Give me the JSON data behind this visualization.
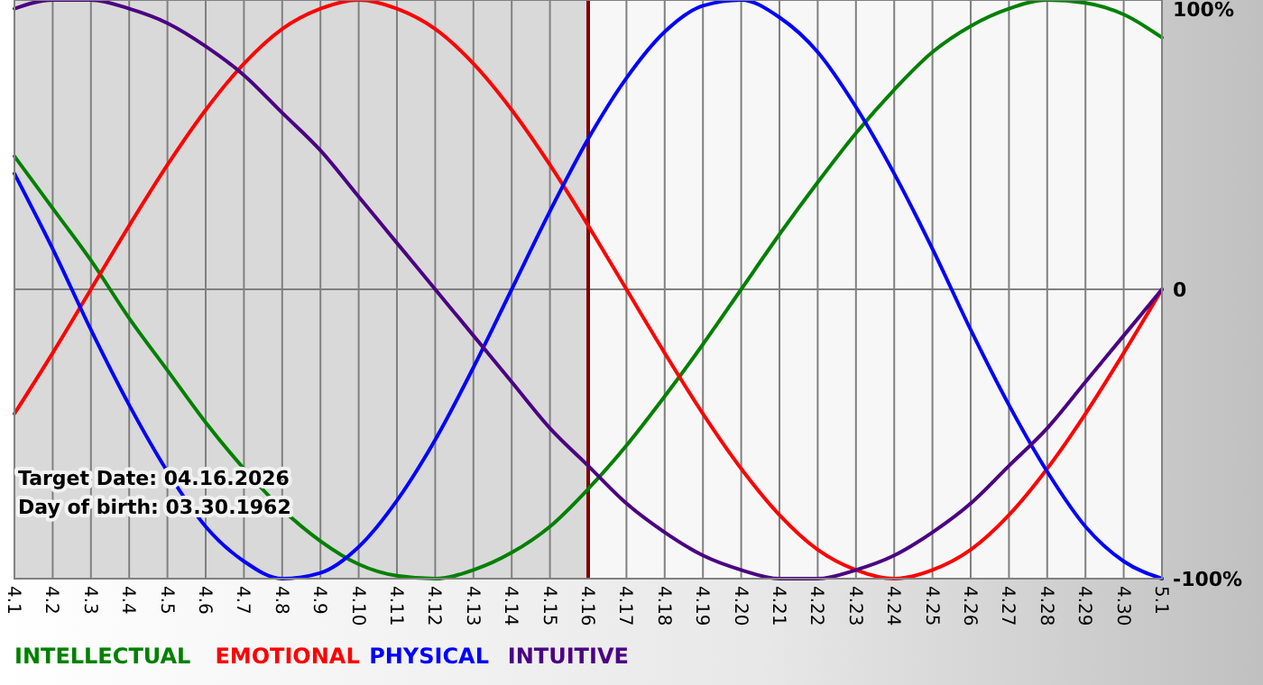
{
  "chart_data": {
    "type": "line",
    "categories": [
      "4.1",
      "4.2",
      "4.3",
      "4.4",
      "4.5",
      "4.6",
      "4.7",
      "4.8",
      "4.9",
      "4.10",
      "4.11",
      "4.12",
      "4.13",
      "4.14",
      "4.15",
      "4.16",
      "4.17",
      "4.18",
      "4.19",
      "4.20",
      "4.21",
      "4.22",
      "4.23",
      "4.24",
      "4.25",
      "4.26",
      "4.27",
      "4.28",
      "4.29",
      "4.30",
      "5.1"
    ],
    "series": [
      {
        "name": "INTELLECTUAL",
        "color": "#008000",
        "values": [
          46,
          28,
          10,
          -10,
          -28,
          -46,
          -62,
          -76,
          -87,
          -95,
          -99,
          -100,
          -97,
          -91,
          -82,
          -69,
          -54,
          -37,
          -19,
          0,
          19,
          37,
          54,
          69,
          82,
          91,
          97,
          100,
          99,
          95,
          87
        ]
      },
      {
        "name": "EMOTIONAL",
        "color": "#ff0000",
        "values": [
          -43,
          -22,
          0,
          22,
          43,
          62,
          78,
          90,
          97,
          100,
          97,
          90,
          78,
          62,
          43,
          22,
          0,
          -22,
          -43,
          -62,
          -78,
          -90,
          -97,
          -100,
          -97,
          -90,
          -78,
          -62,
          -43,
          -22,
          0
        ]
      },
      {
        "name": "PHYSICAL",
        "color": "#0000ff",
        "values": [
          40,
          14,
          -14,
          -40,
          -63,
          -82,
          -94,
          -100,
          -98,
          -89,
          -73,
          -52,
          -27,
          0,
          27,
          52,
          73,
          89,
          98,
          100,
          94,
          82,
          63,
          40,
          14,
          -14,
          -40,
          -63,
          -82,
          -94,
          -100
        ]
      },
      {
        "name": "INTUITIVE",
        "color": "#4b0082",
        "values": [
          97,
          100,
          100,
          97,
          92,
          84,
          74,
          61,
          48,
          32,
          16,
          0,
          -16,
          -32,
          -48,
          -61,
          -74,
          -84,
          -92,
          -97,
          -100,
          -100,
          -97,
          -92,
          -84,
          -74,
          -61,
          -48,
          -32,
          -16,
          0
        ]
      }
    ],
    "ylim": [
      -100,
      100
    ],
    "yticks": [
      {
        "value": 100,
        "label": "100%"
      },
      0,
      {
        "value": -100,
        "label": "-100%"
      }
    ],
    "grid": true,
    "legend": "bottom left",
    "ref_lines": [
      {
        "axis": "x",
        "value": "4.16",
        "color": "#800000"
      }
    ],
    "bands": [
      {
        "axis": "x",
        "from": "4.1",
        "to": "4.16",
        "color": "#d9d9d9"
      }
    ],
    "annotations": [
      "Target Date: 04.16.2026",
      "Day of birth: 03.30.1962"
    ]
  }
}
